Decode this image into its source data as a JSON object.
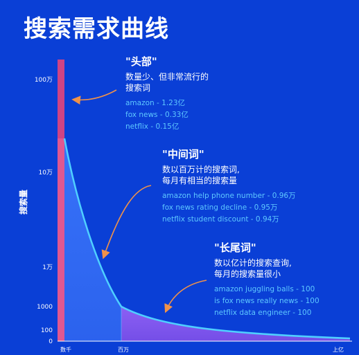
{
  "title": "搜索需求曲线",
  "colors": {
    "background": "#0a3fd6",
    "head_segment": "#e3457c",
    "middle_fill": "#3f7bff",
    "tail_fill": "#8a5cf6",
    "curve": "#4fd0ff",
    "example_text": "#5ec8ff",
    "arrow": "#f0924a"
  },
  "chart_data": {
    "type": "area",
    "ylabel": "搜索量",
    "y_ticks": [
      "100万",
      "10万",
      "1万",
      "1000",
      "100",
      "0"
    ],
    "x_ticks": [
      "数千",
      "百万",
      "上亿"
    ],
    "segments": [
      {
        "name": "\"头部\""
      },
      {
        "name": "\"中间词\""
      },
      {
        "name": "\"长尾词\""
      }
    ]
  },
  "annotations": [
    {
      "head": "\"头部\"",
      "desc": "数量少、但非常流行的\n搜索词",
      "examples": [
        "amazon - 1.23亿",
        "fox news - 0.33亿",
        "netflix - 0.15亿"
      ]
    },
    {
      "head": "\"中间词\"",
      "desc": "数以百万计的搜索词,\n每月有相当的搜索量",
      "examples": [
        "amazon help phone number - 0.96万",
        "fox news rating decline - 0.95万",
        "netflix student discount - 0.94万"
      ]
    },
    {
      "head": "\"长尾词\"",
      "desc": "数以亿计的搜索查询,\n每月的搜索量很小",
      "examples": [
        "amazon juggling balls - 100",
        "is fox news really news - 100",
        "netflix data engineer - 100"
      ]
    }
  ]
}
